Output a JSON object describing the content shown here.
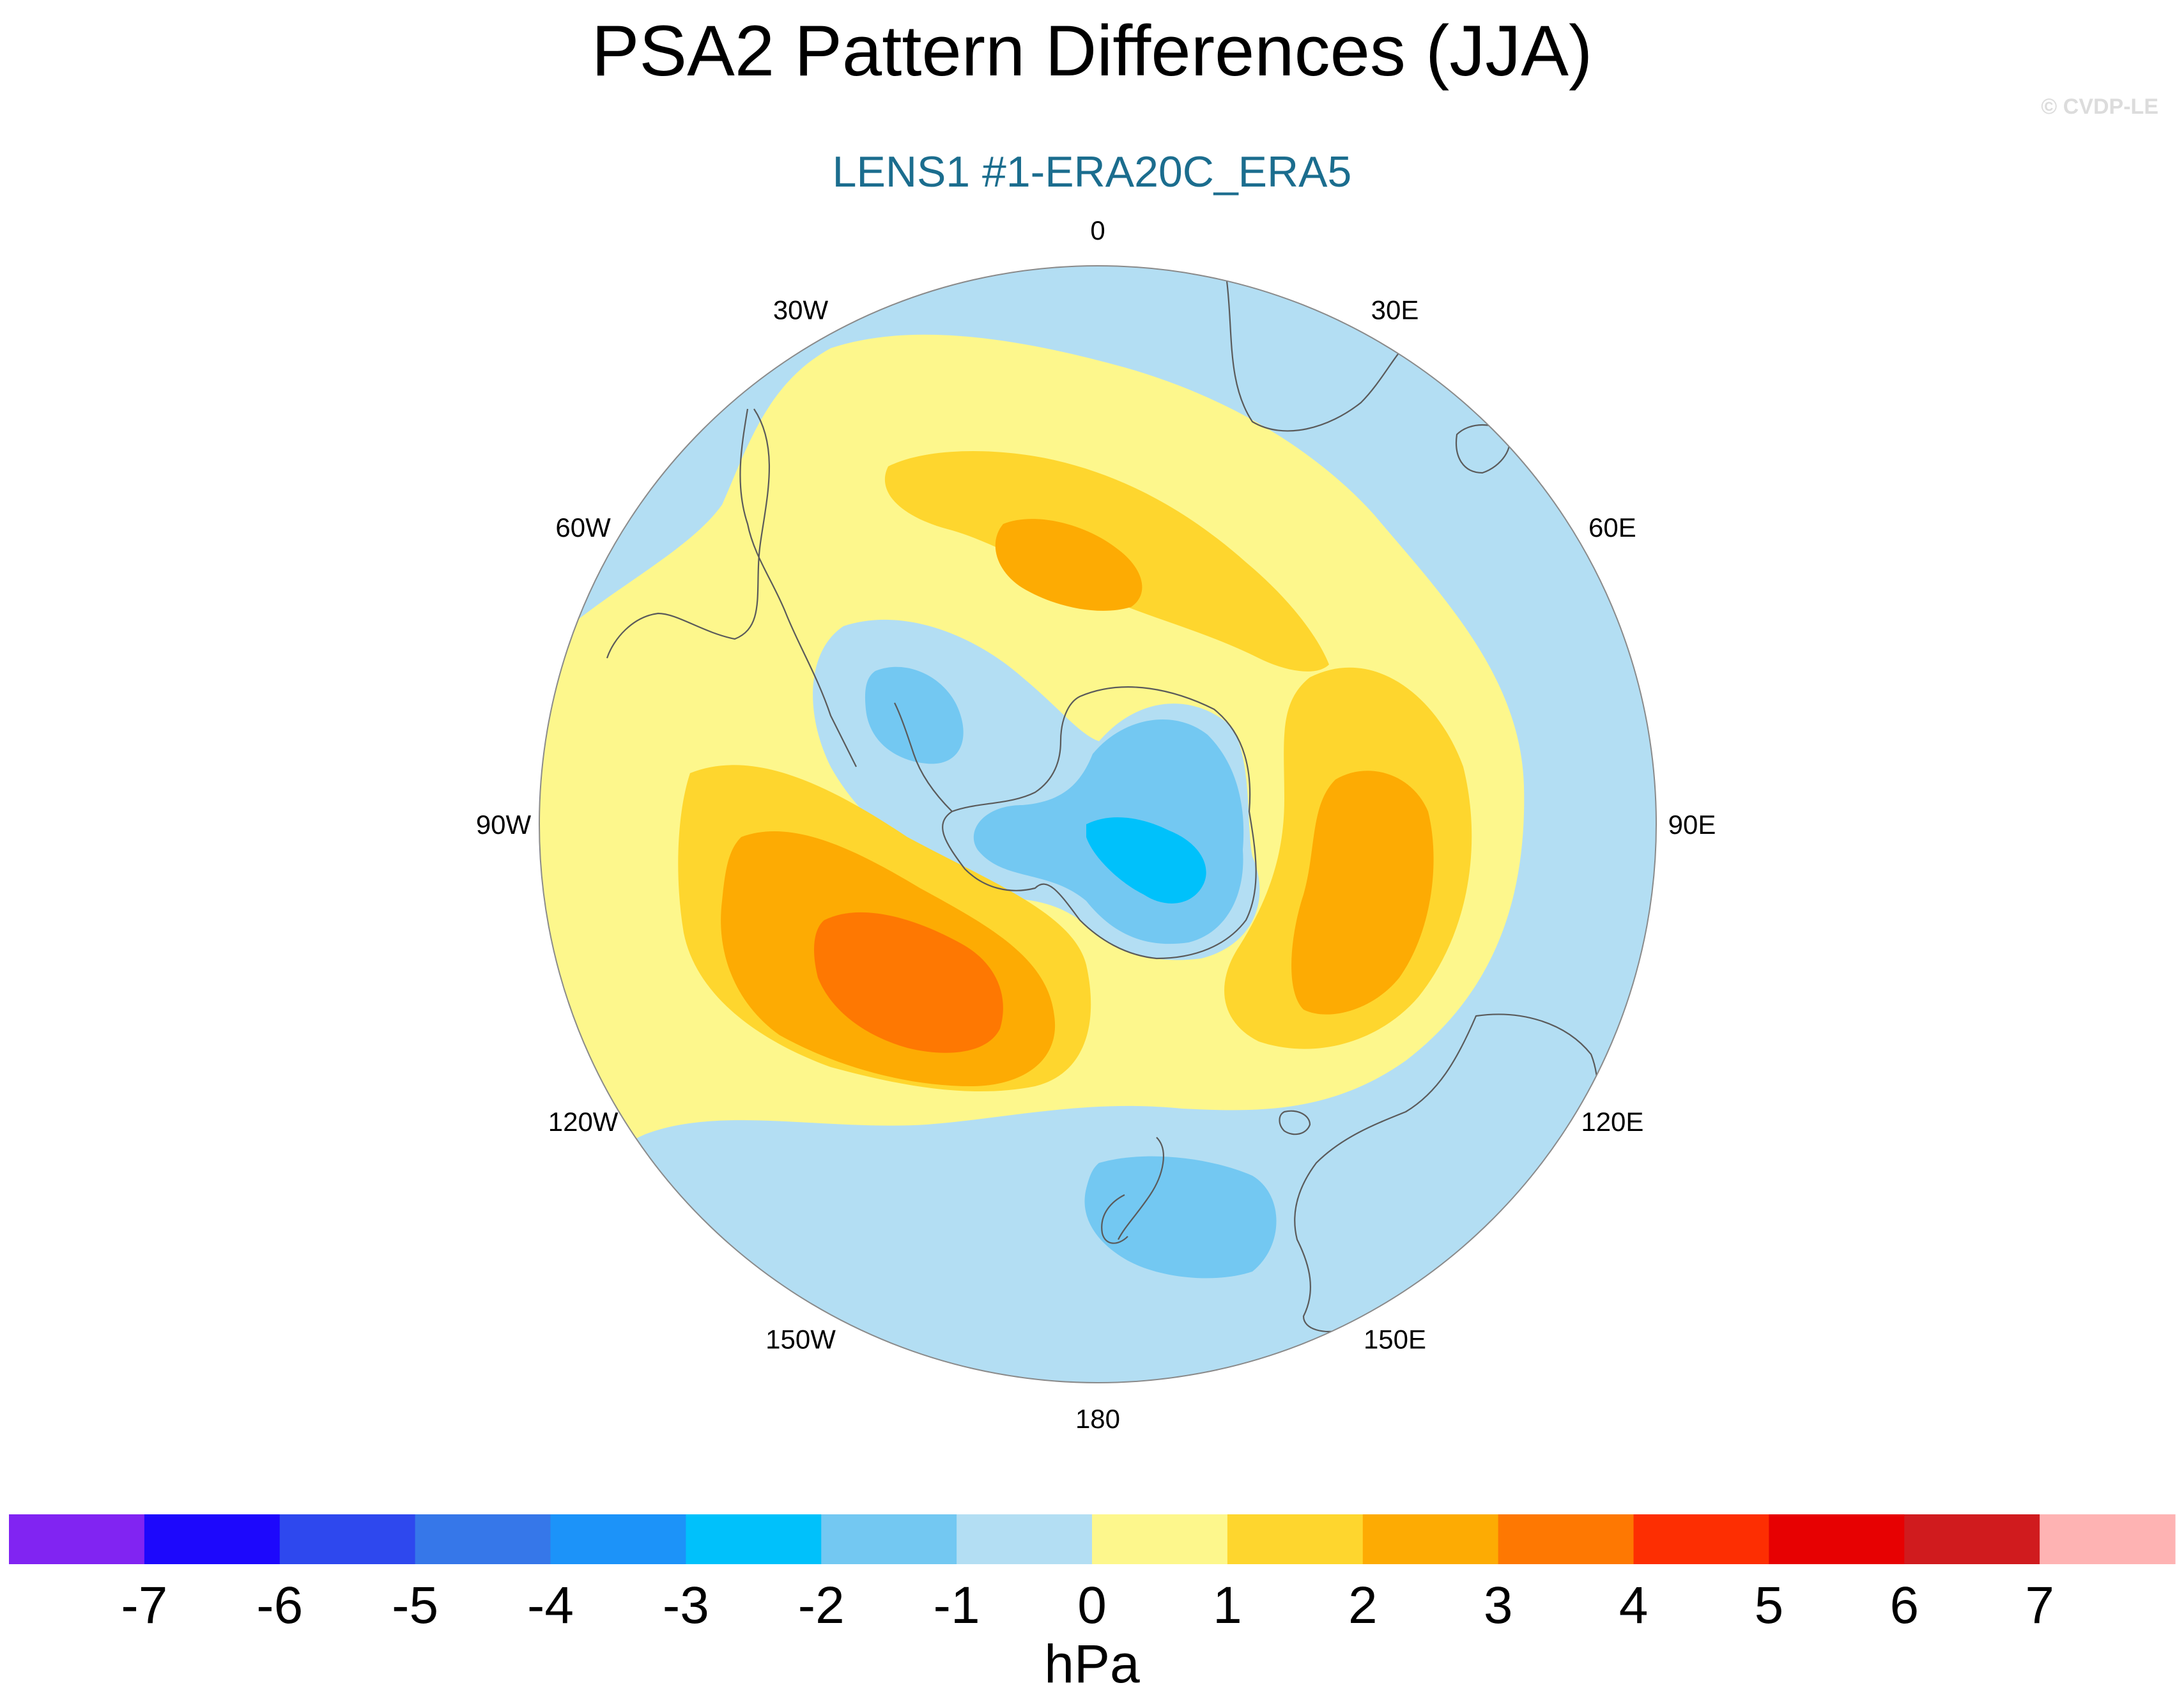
{
  "title": "PSA2 Pattern Differences (JJA)",
  "copyright": "© CVDP-LE",
  "subtitle": "LENS1 #1-ERA20C_ERA5",
  "colors": {
    "subtitle": "#1b6d8e",
    "background": "#b3def3",
    "ring": "#8a8a8a",
    "coast": "#5a5a5a"
  },
  "map": {
    "projection": "south-polar-stereographic",
    "variable": "sea level pressure difference",
    "longitude_labels": [
      {
        "name": "lon-label-0",
        "text": "0",
        "angle_deg": 0
      },
      {
        "name": "lon-label-30e",
        "text": "30E",
        "angle_deg": 30
      },
      {
        "name": "lon-label-60e",
        "text": "60E",
        "angle_deg": 60
      },
      {
        "name": "lon-label-90e",
        "text": "90E",
        "angle_deg": 90
      },
      {
        "name": "lon-label-120e",
        "text": "120E",
        "angle_deg": 120
      },
      {
        "name": "lon-label-150e",
        "text": "150E",
        "angle_deg": 150
      },
      {
        "name": "lon-label-180",
        "text": "180",
        "angle_deg": 180
      },
      {
        "name": "lon-label-150w",
        "text": "150W",
        "angle_deg": 210
      },
      {
        "name": "lon-label-120w",
        "text": "120W",
        "angle_deg": 240
      },
      {
        "name": "lon-label-90w",
        "text": "90W",
        "angle_deg": 270
      },
      {
        "name": "lon-label-60w",
        "text": "60W",
        "angle_deg": 300
      },
      {
        "name": "lon-label-30w",
        "text": "30W",
        "angle_deg": 330
      }
    ]
  },
  "colorbar": {
    "units": "hPa",
    "levels": [
      "-7",
      "-6",
      "-5",
      "-4",
      "-3",
      "-2",
      "-1",
      "0",
      "1",
      "2",
      "3",
      "4",
      "5",
      "6",
      "7"
    ],
    "colors": [
      "#8124f2",
      "#1d08fc",
      "#2e48ee",
      "#3677e9",
      "#1c93f9",
      "#00c1fb",
      "#73c8f2",
      "#b3def3",
      "#fdf78c",
      "#fed62e",
      "#fdab03",
      "#fe7802",
      "#fd2e02",
      "#e70102",
      "#d01b1e",
      "#feb3b3"
    ]
  }
}
